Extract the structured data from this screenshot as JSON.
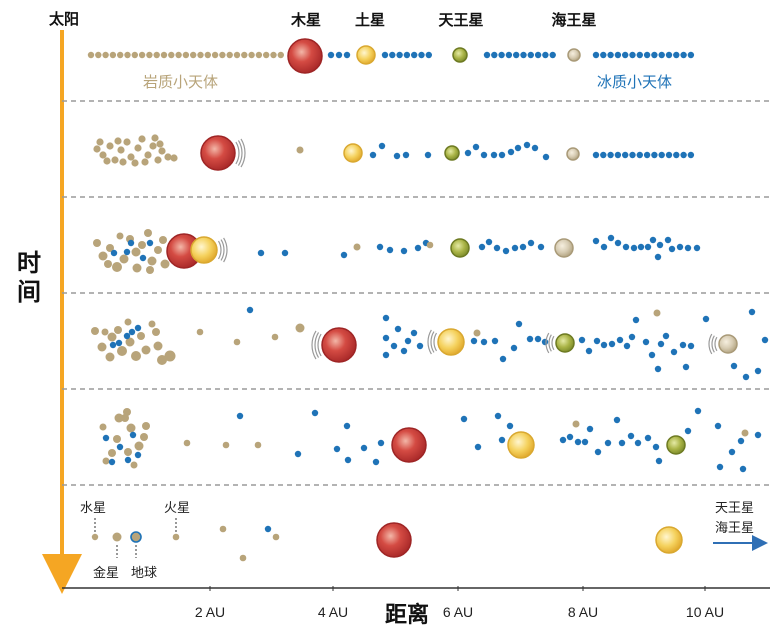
{
  "labels": {
    "sun": "太阳",
    "time_axis": [
      "时",
      "间"
    ],
    "distance_axis": "距离",
    "rocky_bodies": "岩质小天体",
    "icy_bodies": "冰质小天体",
    "top_planets": [
      {
        "id": "jupiter",
        "label": "木星"
      },
      {
        "id": "saturn",
        "label": "土星"
      },
      {
        "id": "uranus",
        "label": "天王星"
      },
      {
        "id": "neptune",
        "label": "海王星"
      }
    ],
    "bottom": {
      "mercury": "水星",
      "mars": "火星",
      "venus": "金星",
      "earth": "地球",
      "uranus_neptune": [
        "天王星",
        "海王星"
      ]
    },
    "ticks": [
      "2 AU",
      "4 AU",
      "6 AU",
      "8 AU",
      "10 AU"
    ]
  },
  "colors": {
    "rocky": "#b8a47a",
    "icy": "#1f73b7",
    "jupiter": "#c43a3a",
    "saturn": "#f0c44c",
    "uranus": "#a0ad3c",
    "neptune": "#d9ccb0",
    "arrow": "#f5a623",
    "migration_arrow": "#2f6fb5",
    "divider": "#9a9a9a"
  }
}
